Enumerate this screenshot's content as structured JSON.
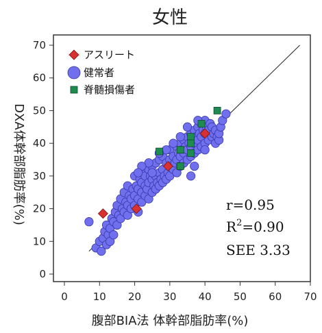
{
  "chart_data": {
    "type": "scatter",
    "title": "女性",
    "xlabel": "腹部BIA法 体幹部脂肪率(%)",
    "ylabel": "DXA体幹部脂肪率(%)",
    "xlim": [
      0,
      70
    ],
    "ylim": [
      0,
      70
    ],
    "x_ticks": [
      "0",
      "10",
      "20",
      "30",
      "40",
      "50",
      "60",
      "70"
    ],
    "y_ticks": [
      "0",
      "10",
      "20",
      "30",
      "40",
      "50",
      "60",
      "70"
    ],
    "grid": false,
    "legend_position": "top-left",
    "reference_line": {
      "from": [
        7,
        7
      ],
      "to": [
        67,
        70
      ]
    },
    "series": [
      {
        "name": "アスリート",
        "marker": "diamond",
        "color": "#d93030",
        "points": [
          [
            11,
            18.5
          ],
          [
            20.5,
            20
          ],
          [
            29.5,
            33
          ],
          [
            40,
            43
          ]
        ]
      },
      {
        "name": "健常者",
        "marker": "circle",
        "color": "#7070ee",
        "points": [
          [
            7,
            16
          ],
          [
            9,
            8
          ],
          [
            10,
            10
          ],
          [
            10.5,
            7
          ],
          [
            11,
            11
          ],
          [
            11.5,
            13
          ],
          [
            12,
            9
          ],
          [
            12,
            15
          ],
          [
            12.5,
            12
          ],
          [
            13,
            10
          ],
          [
            13,
            14
          ],
          [
            13.5,
            17
          ],
          [
            14,
            12
          ],
          [
            14,
            16
          ],
          [
            14.5,
            19
          ],
          [
            15,
            15
          ],
          [
            15,
            21
          ],
          [
            15.5,
            18
          ],
          [
            16,
            17
          ],
          [
            16,
            23
          ],
          [
            16.5,
            20
          ],
          [
            17,
            19
          ],
          [
            17,
            25
          ],
          [
            17.5,
            22
          ],
          [
            18,
            18
          ],
          [
            18,
            21
          ],
          [
            18,
            27
          ],
          [
            18.5,
            24
          ],
          [
            19,
            20
          ],
          [
            19,
            23
          ],
          [
            19.5,
            26
          ],
          [
            20,
            21
          ],
          [
            20,
            24
          ],
          [
            20,
            30
          ],
          [
            20.5,
            27
          ],
          [
            21,
            19
          ],
          [
            21,
            23
          ],
          [
            21,
            26
          ],
          [
            21.5,
            29
          ],
          [
            22,
            22
          ],
          [
            22,
            25
          ],
          [
            22,
            28
          ],
          [
            22.5,
            31
          ],
          [
            23,
            24
          ],
          [
            23,
            27
          ],
          [
            23,
            30
          ],
          [
            23.5,
            26
          ],
          [
            24,
            23
          ],
          [
            24,
            28
          ],
          [
            24,
            32
          ],
          [
            24.5,
            30
          ],
          [
            25,
            25
          ],
          [
            25,
            29
          ],
          [
            25,
            33
          ],
          [
            25.5,
            27
          ],
          [
            26,
            26
          ],
          [
            26,
            30
          ],
          [
            26,
            34
          ],
          [
            26.5,
            28
          ],
          [
            27,
            27
          ],
          [
            27,
            31
          ],
          [
            27,
            35
          ],
          [
            27.5,
            29
          ],
          [
            28,
            28
          ],
          [
            28,
            32
          ],
          [
            28,
            36
          ],
          [
            28.5,
            30
          ],
          [
            29,
            29
          ],
          [
            29,
            34
          ],
          [
            29.5,
            31
          ],
          [
            30,
            30
          ],
          [
            30,
            35
          ],
          [
            30,
            38
          ],
          [
            30.5,
            33
          ],
          [
            31,
            32
          ],
          [
            31,
            36
          ],
          [
            31.5,
            34
          ],
          [
            32,
            31
          ],
          [
            32,
            35
          ],
          [
            32,
            39
          ],
          [
            32.5,
            37
          ],
          [
            33,
            33
          ],
          [
            33,
            36
          ],
          [
            33,
            40
          ],
          [
            33.5,
            38
          ],
          [
            34,
            34
          ],
          [
            34,
            37
          ],
          [
            34,
            41
          ],
          [
            34.5,
            39
          ],
          [
            35,
            35
          ],
          [
            35,
            38
          ],
          [
            35,
            42
          ],
          [
            35.5,
            40
          ],
          [
            36,
            36
          ],
          [
            36,
            39
          ],
          [
            36,
            43
          ],
          [
            36.5,
            41
          ],
          [
            37,
            37
          ],
          [
            37,
            40
          ],
          [
            37,
            44
          ],
          [
            37.5,
            42
          ],
          [
            38,
            38
          ],
          [
            38,
            41
          ],
          [
            38,
            45
          ],
          [
            38.5,
            43
          ],
          [
            39,
            39
          ],
          [
            39,
            42
          ],
          [
            39,
            46
          ],
          [
            39.5,
            44
          ],
          [
            40,
            40
          ],
          [
            40,
            43
          ],
          [
            40,
            47
          ],
          [
            40.5,
            45
          ],
          [
            41,
            41
          ],
          [
            41,
            44
          ],
          [
            41.5,
            46
          ],
          [
            42,
            42
          ],
          [
            42,
            45
          ],
          [
            42.5,
            43
          ],
          [
            43,
            40
          ],
          [
            43,
            44
          ],
          [
            43.5,
            42
          ],
          [
            44,
            41
          ],
          [
            44,
            43
          ],
          [
            44.5,
            45
          ],
          [
            45,
            47
          ],
          [
            46,
            49
          ],
          [
            36,
            30
          ],
          [
            37,
            33
          ],
          [
            40,
            38
          ],
          [
            35,
            45
          ],
          [
            38,
            47
          ],
          [
            33,
            42
          ],
          [
            31,
            40
          ],
          [
            29,
            38
          ],
          [
            27,
            37
          ],
          [
            24,
            34
          ],
          [
            22,
            33
          ],
          [
            25,
            31
          ],
          [
            21,
            31
          ]
        ]
      },
      {
        "name": "脊髄損傷者",
        "marker": "square",
        "color": "#1e8c50",
        "points": [
          [
            27,
            37.5
          ],
          [
            33,
            38
          ],
          [
            33,
            33
          ],
          [
            36,
            42
          ],
          [
            36,
            40
          ],
          [
            36,
            37
          ],
          [
            39,
            46
          ],
          [
            43.5,
            50
          ]
        ]
      }
    ],
    "annotations": [
      "r=0.95",
      "R",
      "2",
      "=0.90",
      "SEE 3.33"
    ]
  }
}
